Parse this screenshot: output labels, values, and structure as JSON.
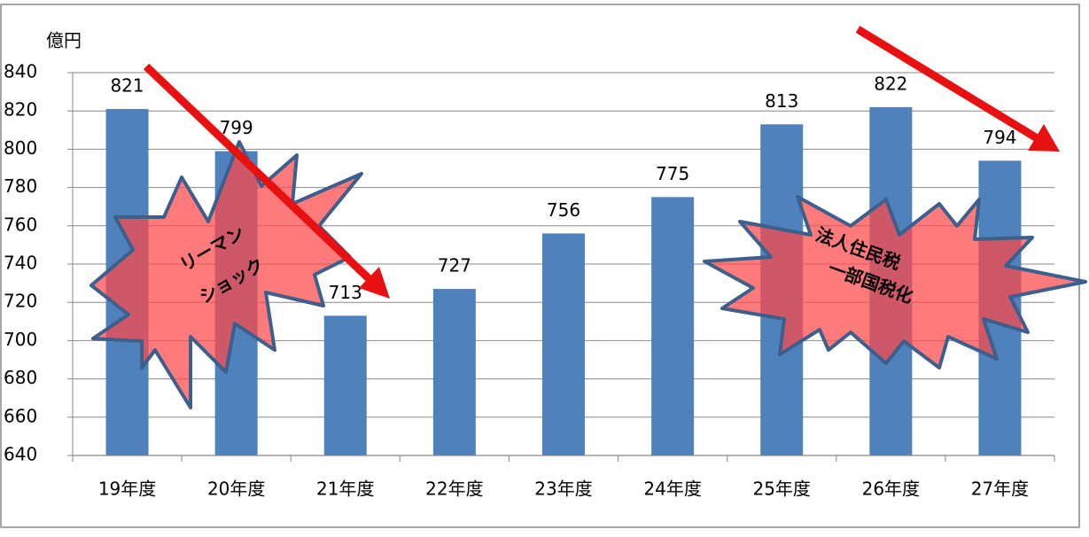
{
  "chart_data": {
    "type": "bar",
    "y_label": "億円",
    "categories": [
      "19年度",
      "20年度",
      "21年度",
      "22年度",
      "23年度",
      "24年度",
      "25年度",
      "26年度",
      "27年度"
    ],
    "values": [
      821,
      799,
      713,
      727,
      756,
      775,
      813,
      822,
      794
    ],
    "color": "#4f81bd",
    "ylim": [
      640,
      840
    ],
    "yticks": [
      640,
      660,
      680,
      700,
      720,
      740,
      760,
      780,
      800,
      820,
      840
    ],
    "grid": true,
    "annotations": [
      "リーマン",
      "ショック",
      "法人住民税",
      "一部国税化"
    ]
  }
}
